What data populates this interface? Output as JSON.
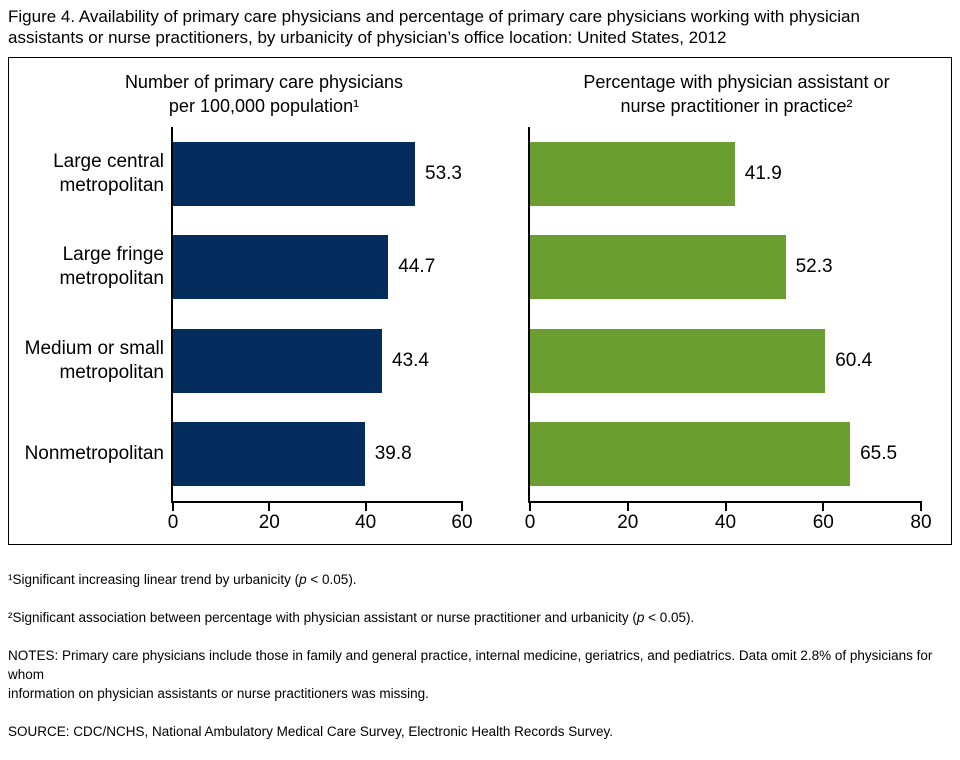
{
  "figure_title": "Figure 4. Availability of primary care physicians and percentage of primary care physicians working with physician\nassistants or nurse practitioners, by urbanicity of physician’s office location: United States, 2012",
  "colors": {
    "bar_navy": "#042d5e",
    "bar_green": "#6a9e31",
    "axis": "#000000",
    "frame_border": "#000000",
    "text": "#000000"
  },
  "chart_data": [
    {
      "type": "bar",
      "orientation": "horizontal",
      "title": "Number of primary care physicians\nper 100,000 population¹",
      "categories": [
        "Large central\nmetropolitan",
        "Large fringe\nmetropolitan",
        "Medium or small\nmetropolitan",
        "Nonmetropolitan"
      ],
      "values": [
        53.3,
        44.7,
        43.4,
        39.8
      ],
      "data_labels": [
        "53.3",
        "44.7",
        "43.4",
        "39.8"
      ],
      "xlim": [
        0,
        60
      ],
      "xticks": [
        0,
        20,
        40,
        60
      ],
      "bar_color": "#042d5e",
      "show_category_labels": true,
      "grid": false,
      "legend": "none"
    },
    {
      "type": "bar",
      "orientation": "horizontal",
      "title": "Percentage with physician assistant or\nnurse practitioner in practice²",
      "categories": [
        "Large central\nmetropolitan",
        "Large fringe\nmetropolitan",
        "Medium or small\nmetropolitan",
        "Nonmetropolitan"
      ],
      "values": [
        41.9,
        52.3,
        60.4,
        65.5
      ],
      "data_labels": [
        "41.9",
        "52.3",
        "60.4",
        "65.5"
      ],
      "xlim": [
        0,
        80
      ],
      "xticks": [
        0,
        20,
        40,
        60,
        80
      ],
      "bar_color": "#6a9e31",
      "show_category_labels": false,
      "grid": false,
      "legend": "none"
    }
  ],
  "footnotes": [
    {
      "pre": "¹Significant increasing linear trend by urbanicity (",
      "italic": "p",
      "post": " < 0.05)."
    },
    {
      "pre": "²Significant association between percentage with physician assistant or nurse practitioner and urbanicity (",
      "italic": "p",
      "post": " < 0.05)."
    },
    {
      "pre": "NOTES: Primary care physicians include those in family and general practice, internal medicine, geriatrics, and pediatrics. Data omit 2.8% of physicians for whom\ninformation on physician assistants or nurse practitioners was missing.",
      "italic": "",
      "post": ""
    },
    {
      "pre": "SOURCE: CDC/NCHS, National Ambulatory Medical Care Survey, Electronic Health Records Survey.",
      "italic": "",
      "post": ""
    }
  ]
}
